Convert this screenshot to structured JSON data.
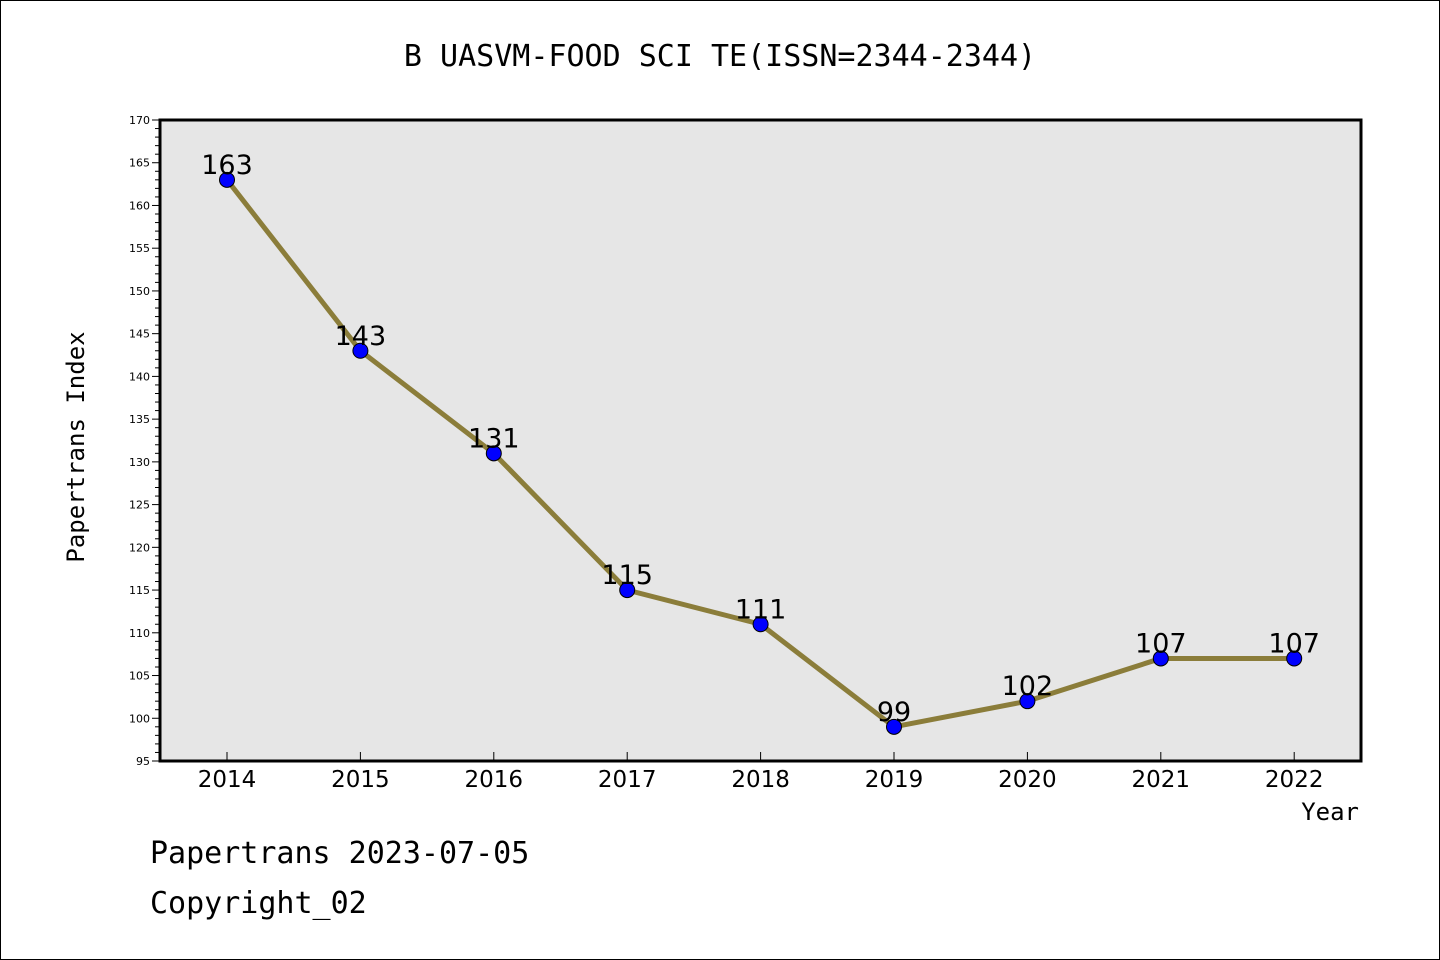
{
  "chart_data": {
    "type": "line",
    "title": "B UASVM-FOOD SCI TE(ISSN=2344-2344)",
    "xlabel": "Year",
    "ylabel": "Papertrans Index",
    "categories": [
      "2014",
      "2015",
      "2016",
      "2017",
      "2018",
      "2019",
      "2020",
      "2021",
      "2022"
    ],
    "series": [
      {
        "values": [
          163,
          143,
          131,
          115,
          111,
          99,
          102,
          107,
          107
        ]
      }
    ],
    "ylim": [
      95,
      170
    ],
    "yticks": [
      95,
      100,
      105,
      110,
      115,
      120,
      125,
      130,
      135,
      140,
      145,
      150,
      155,
      160,
      165,
      170
    ],
    "ytick_labels": [
      "95",
      "100",
      "105",
      "110",
      "115",
      "120",
      "125",
      "130",
      "135",
      "140",
      "145",
      "150",
      "155",
      "160",
      "165",
      "170"
    ],
    "grid": false,
    "data_labels": true,
    "colors": {
      "line": "#8b7d3a",
      "marker": "#0000ff",
      "plot_bg": "#e6e6e6"
    }
  },
  "footer": {
    "line1": "Papertrans 2023-07-05",
    "line2": "Copyright_02"
  }
}
